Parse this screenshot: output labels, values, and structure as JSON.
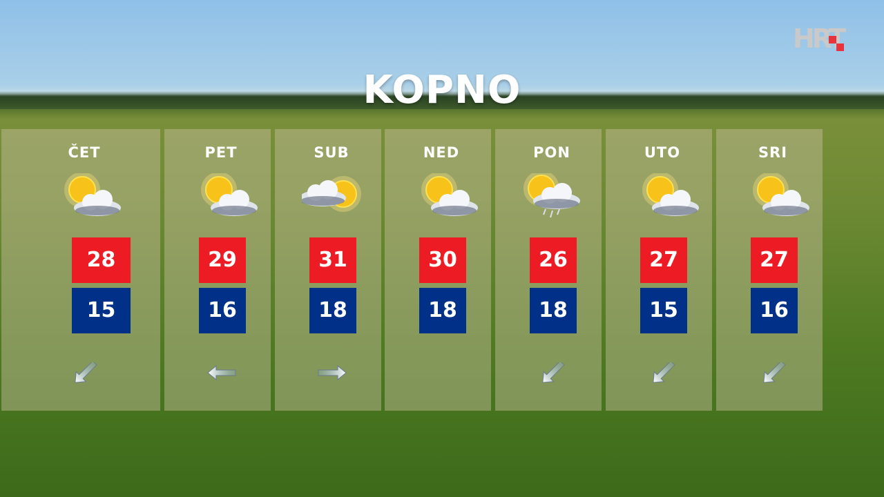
{
  "title": "KOPNO",
  "logo": "HRT",
  "colors": {
    "max": "#ed1c24",
    "min": "#003087"
  },
  "days": [
    {
      "day": "ČET",
      "icon": "sun-behind-cloud-icon",
      "max": "28",
      "min": "15",
      "wind": "southwest"
    },
    {
      "day": "PET",
      "icon": "sun-behind-cloud-icon",
      "max": "29",
      "min": "16",
      "wind": "west"
    },
    {
      "day": "SUB",
      "icon": "cloud-and-sun-icon",
      "max": "31",
      "min": "18",
      "wind": "east"
    },
    {
      "day": "NED",
      "icon": "sun-behind-cloud-icon",
      "max": "30",
      "min": "18",
      "wind": ""
    },
    {
      "day": "PON",
      "icon": "sun-cloud-rain-icon",
      "max": "26",
      "min": "18",
      "wind": "southwest"
    },
    {
      "day": "UTO",
      "icon": "sun-behind-cloud-icon",
      "max": "27",
      "min": "15",
      "wind": "southwest"
    },
    {
      "day": "SRI",
      "icon": "sun-behind-cloud-icon",
      "max": "27",
      "min": "16",
      "wind": "southwest"
    }
  ]
}
